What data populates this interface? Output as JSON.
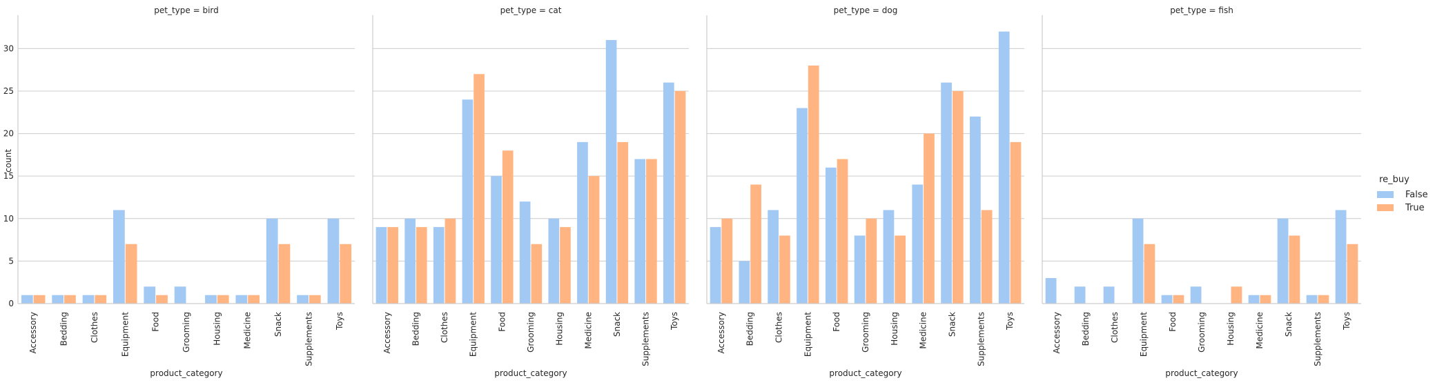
{
  "chart_data": {
    "type": "bar",
    "facet_variable": "pet_type",
    "facets": [
      {
        "title": "pet_type = bird",
        "series": [
          {
            "name": "False",
            "values": [
              1,
              1,
              1,
              11,
              2,
              2,
              1,
              1,
              10,
              1,
              10
            ]
          },
          {
            "name": "True",
            "values": [
              1,
              1,
              1,
              7,
              1,
              0,
              1,
              1,
              7,
              1,
              7
            ]
          }
        ]
      },
      {
        "title": "pet_type = cat",
        "series": [
          {
            "name": "False",
            "values": [
              9,
              10,
              9,
              24,
              15,
              12,
              10,
              19,
              31,
              17,
              26
            ]
          },
          {
            "name": "True",
            "values": [
              9,
              9,
              10,
              27,
              18,
              7,
              9,
              15,
              19,
              17,
              25
            ]
          }
        ]
      },
      {
        "title": "pet_type = dog",
        "series": [
          {
            "name": "False",
            "values": [
              9,
              5,
              11,
              23,
              16,
              8,
              11,
              14,
              26,
              22,
              32
            ]
          },
          {
            "name": "True",
            "values": [
              10,
              14,
              8,
              28,
              17,
              10,
              8,
              20,
              25,
              11,
              19
            ]
          }
        ]
      },
      {
        "title": "pet_type = fish",
        "series": [
          {
            "name": "False",
            "values": [
              3,
              2,
              2,
              10,
              1,
              2,
              0,
              1,
              10,
              1,
              11
            ]
          },
          {
            "name": "True",
            "values": [
              0,
              0,
              0,
              7,
              1,
              0,
              2,
              1,
              8,
              1,
              7
            ]
          }
        ]
      }
    ],
    "categories": [
      "Accessory",
      "Bedding",
      "Clothes",
      "Equipment",
      "Food",
      "Grooming",
      "Housing",
      "Medicine",
      "Snack",
      "Supplements",
      "Toys"
    ],
    "xlabel": "product_category",
    "ylabel": "count",
    "ylim": [
      0,
      33.6
    ],
    "yticks": [
      0,
      5,
      10,
      15,
      20,
      25,
      30
    ],
    "grid": "horizontal",
    "legend": {
      "title": "re_buy",
      "placement": "right",
      "entries": [
        "False",
        "True"
      ]
    },
    "colors": {
      "False": "#a1c9f4",
      "True": "#ffb482"
    }
  }
}
